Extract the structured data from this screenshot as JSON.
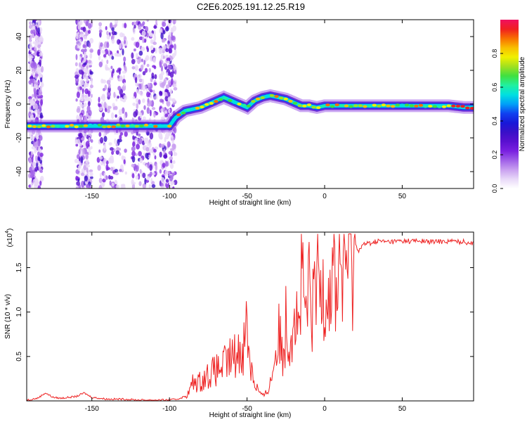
{
  "title": "C2E6.2025.191.12.25.R19",
  "colormap": [
    "#ffffff",
    "#e8d8f8",
    "#c9a0f0",
    "#a060e8",
    "#7a20e0",
    "#5a10d0",
    "#3a10c8",
    "#1818d8",
    "#1040f0",
    "#00a0f8",
    "#00e0e0",
    "#20f0a0",
    "#40e040",
    "#a0e020",
    "#f0f000",
    "#f8c000",
    "#f87000",
    "#f02020",
    "#f01060"
  ],
  "chart_data": [
    {
      "type": "heatmap",
      "xlabel": "Height of straight line (km)",
      "ylabel": "Frequency (Hz)",
      "xlim": [
        -192,
        96
      ],
      "ylim": [
        -50,
        50
      ],
      "xticks": [
        -150,
        -100,
        -50,
        0,
        50
      ],
      "yticks": [
        -40,
        -20,
        0,
        20,
        40
      ],
      "ridge": {
        "x": [
          -192,
          -180,
          -170,
          -160,
          -150,
          -140,
          -130,
          -120,
          -110,
          -100,
          -96,
          -90,
          -85,
          -80,
          -75,
          -70,
          -65,
          -60,
          -55,
          -50,
          -45,
          -40,
          -35,
          -30,
          -25,
          -20,
          -15,
          -10,
          -5,
          0,
          10,
          20,
          30,
          40,
          50,
          60,
          70,
          80,
          90,
          96
        ],
        "freq": [
          -13,
          -13,
          -13,
          -13,
          -13,
          -13,
          -13,
          -13,
          -13,
          -13,
          -8,
          -4,
          -3,
          -2,
          0,
          2,
          4,
          2,
          0,
          -2,
          2,
          4,
          5,
          4,
          3,
          1,
          -1,
          -1,
          -2,
          -1,
          -1,
          -1,
          -1,
          -1,
          -1,
          -1,
          -1,
          -1,
          -2,
          -2
        ]
      },
      "colorbar": {
        "label": "Normalized spectral amplitude",
        "range": [
          0,
          1
        ],
        "ticks": [
          "0.0",
          "0.2",
          "0.4",
          "0.6",
          "0.8"
        ]
      }
    },
    {
      "type": "line",
      "xlabel": "Height of straight line (km)",
      "ylabel": "SNR (10 * v/v)",
      "scale_label": "(x10",
      "scale_exp": "4",
      "xlim": [
        -192,
        96
      ],
      "ylim": [
        0,
        1.9
      ],
      "xticks": [
        -150,
        -100,
        -50,
        0,
        50
      ],
      "yticks": [
        "0.5",
        "1.0",
        "1.5"
      ],
      "series": [
        {
          "color": "#ee2222",
          "x": [
            -192,
            -185,
            -180,
            -175,
            -170,
            -160,
            -155,
            -150,
            -140,
            -130,
            -120,
            -110,
            -100,
            -95,
            -90,
            -88,
            -85,
            -80,
            -75,
            -70,
            -65,
            -60,
            -55,
            -52,
            -50,
            -48,
            -45,
            -42,
            -40,
            -38,
            -35,
            -32,
            -30,
            -27,
            -25,
            -22,
            -20,
            -17,
            -15,
            -12,
            -10,
            -7,
            -5,
            -2,
            0,
            3,
            5,
            8,
            10,
            12,
            15,
            18,
            20,
            22,
            25,
            30,
            35,
            40,
            50,
            60,
            70,
            80,
            90,
            96
          ],
          "y": [
            0.01,
            0.03,
            0.09,
            0.04,
            0.03,
            0.05,
            0.09,
            0.04,
            0.02,
            0.02,
            0.01,
            0.01,
            0.01,
            0.02,
            0.05,
            0.08,
            0.2,
            0.22,
            0.3,
            0.34,
            0.4,
            0.48,
            0.55,
            0.65,
            0.9,
            0.45,
            0.2,
            0.1,
            0.05,
            0.08,
            0.2,
            0.5,
            0.75,
            0.55,
            0.9,
            0.72,
            1.15,
            0.8,
            1.3,
            0.95,
            1.2,
            0.98,
            1.4,
            1.2,
            1.5,
            1.25,
            1.48,
            1.3,
            1.55,
            1.45,
            1.65,
            1.6,
            1.75,
            1.7,
            1.76,
            1.78,
            1.8,
            1.79,
            1.8,
            1.8,
            1.79,
            1.8,
            1.79,
            1.78
          ]
        }
      ]
    }
  ]
}
